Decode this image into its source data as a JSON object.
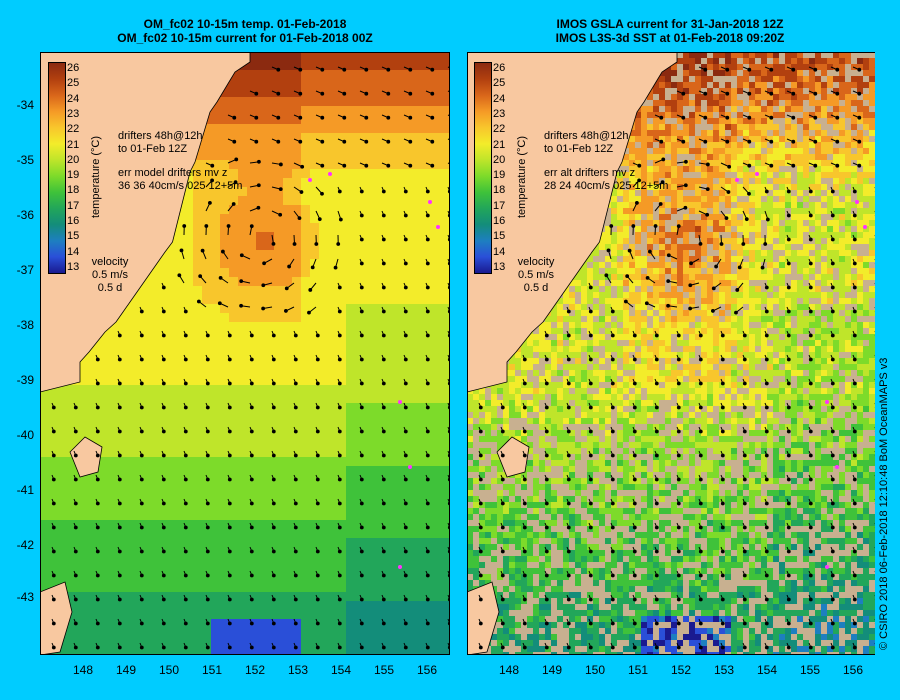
{
  "titles": {
    "left": [
      "OM_fc02 10-15m temp. 01-Feb-2018",
      "OM_fc02 10-15m current for 01-Feb-2018 00Z"
    ],
    "right": [
      "IMOS GSLA current for 31-Jan-2018 12Z",
      "IMOS L3S-3d SST at 01-Feb-2018 09:20Z"
    ]
  },
  "latitude_labels": [
    "-34",
    "-35",
    "-36",
    "-37",
    "-38",
    "-39",
    "-40",
    "-41",
    "-42",
    "-43"
  ],
  "longitude_labels": [
    "148",
    "149",
    "150",
    "151",
    "152",
    "153",
    "154",
    "155",
    "156"
  ],
  "colorbar": {
    "label": "temperature (°C)",
    "ticks": [
      "26",
      "25",
      "24",
      "23",
      "22",
      "21",
      "20",
      "19",
      "18",
      "17",
      "16",
      "15",
      "14",
      "13"
    ],
    "colors": [
      "#8b2a10",
      "#b2400f",
      "#d9661a",
      "#f59a26",
      "#f8c62c",
      "#f3ec2a",
      "#bfe52a",
      "#7ddb2a",
      "#3fc23a",
      "#22a65a",
      "#138d7a",
      "#1d7fc0",
      "#2a4fd8",
      "#1a1a90"
    ]
  },
  "annotations": {
    "left": {
      "drifters": [
        "drifters 48h@12h",
        "to 01-Feb 12Z"
      ],
      "err": [
        "err model drifters mv z",
        "36 36 40cm/s 025 12+5m"
      ]
    },
    "right": {
      "drifters": [
        "drifters 48h@12h",
        "to 01-Feb 12Z"
      ],
      "err": [
        "err alt drifters mv z",
        "28 24 40cm/s 025 12+5m"
      ]
    },
    "velocity": [
      "velocity",
      "0.5 m/s",
      "0.5 d"
    ]
  },
  "credit": "© CSIRO 2018   06-Feb-2018 12:10:48 BoM OceanMAPS v3",
  "colors": {
    "background": "#00ccff",
    "land": "#f8c8a0",
    "arrow": "#000000",
    "drifter": "#ff33ff",
    "missing_sst": "#c8b090"
  }
}
